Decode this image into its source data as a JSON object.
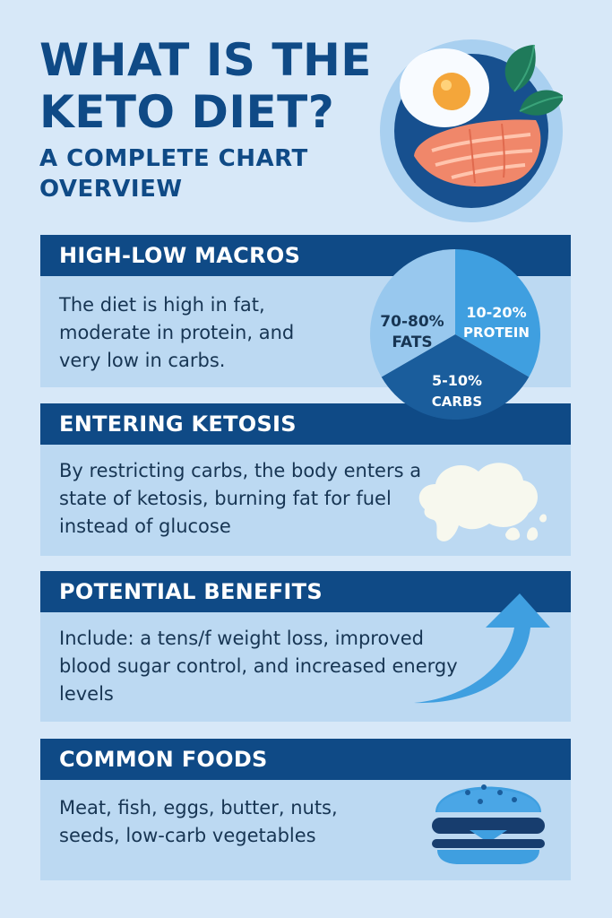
{
  "header": {
    "title_line1": "WHAT IS THE",
    "title_line2": "KETO DIET?",
    "subtitle_line1": "A COMPLETE CHART",
    "subtitle_line2": "OVERVIEW",
    "image_icon": "egg-salmon-spinach-plate-icon"
  },
  "sections": [
    {
      "heading": "HIGH-LOW MACROS",
      "body": "The diet is high in fat, moderate in protein, and very low in carbs.",
      "icon": "macro-pie-chart"
    },
    {
      "heading": "ENTERING KETOSIS",
      "body": "By restricting carbs, the body enters a state of ketosis, burning fat for fuel instead of glucose",
      "icon": "fat-blob-icon"
    },
    {
      "heading": "POTENTIAL BENEFITS",
      "body": "Include: a tens/f weight loss, improved blood sugar control, and increased energy levels",
      "icon": "upward-arrow-icon"
    },
    {
      "heading": "COMMON FOODS",
      "body": "Meat, fish, eggs, butter, nuts, seeds, low-carb vegetables",
      "icon": "burger-icon"
    }
  ],
  "macros": {
    "fats": {
      "value": "70-80%",
      "label": "FATS"
    },
    "protein": {
      "value": "10-20%",
      "label": "PROTEIN"
    },
    "carbs": {
      "value": "5-10%",
      "label": "CARBS"
    }
  },
  "colors": {
    "background": "#d7e8f8",
    "card": "#bcd9f2",
    "header": "#0f4a86",
    "pie_fats": "#98c8ee",
    "pie_protein": "#3f9fe0",
    "pie_carbs": "#1a5d9c"
  }
}
